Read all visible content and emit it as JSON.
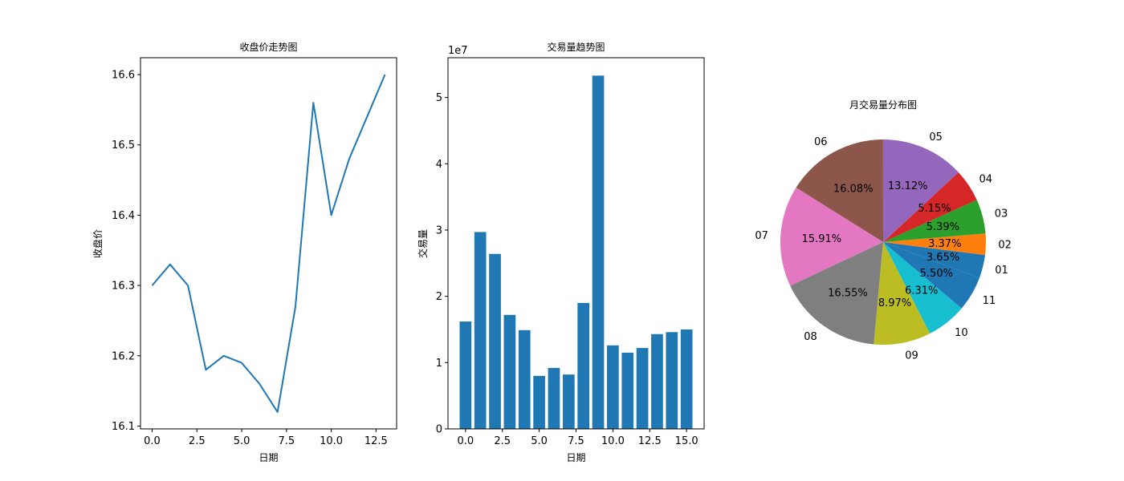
{
  "chart_data": [
    {
      "type": "line",
      "title": "收盘价走势图",
      "xlabel": "日期",
      "ylabel": "收盘价",
      "x": [
        0,
        1,
        2,
        3,
        4,
        5,
        6,
        7,
        8,
        9,
        10,
        11,
        12,
        13
      ],
      "values": [
        16.3,
        16.33,
        16.3,
        16.18,
        16.2,
        16.19,
        16.16,
        16.12,
        16.27,
        16.56,
        16.4,
        16.48,
        16.54,
        16.6
      ],
      "xticks": [
        0.0,
        2.5,
        5.0,
        7.5,
        10.0,
        12.5
      ],
      "xtick_labels": [
        "0.0",
        "2.5",
        "5.0",
        "7.5",
        "10.0",
        "12.5"
      ],
      "yticks": [
        16.1,
        16.2,
        16.3,
        16.4,
        16.5,
        16.6
      ],
      "ytick_labels": [
        "16.1",
        "16.2",
        "16.3",
        "16.4",
        "16.5",
        "16.6"
      ],
      "xlim": [
        -0.65,
        13.65
      ],
      "ylim": [
        16.096,
        16.624
      ],
      "color": "#1f77b4",
      "grid": false
    },
    {
      "type": "bar",
      "title": "交易量趋势图",
      "xlabel": "日期",
      "ylabel": "交易量",
      "offset_text": "1e7",
      "x": [
        0,
        1,
        2,
        3,
        4,
        5,
        6,
        7,
        8,
        9,
        10,
        11,
        12,
        13,
        14,
        15
      ],
      "values": [
        1.62,
        2.97,
        2.64,
        1.72,
        1.49,
        0.8,
        0.92,
        0.82,
        1.9,
        5.33,
        1.26,
        1.15,
        1.22,
        1.43,
        1.46,
        1.5
      ],
      "value_scale": 10000000,
      "xticks": [
        0.0,
        2.5,
        5.0,
        7.5,
        10.0,
        12.5,
        15.0
      ],
      "xtick_labels": [
        "0.0",
        "2.5",
        "5.0",
        "7.5",
        "10.0",
        "12.5",
        "15.0"
      ],
      "yticks": [
        0,
        1,
        2,
        3,
        4,
        5
      ],
      "ytick_labels": [
        "0",
        "1",
        "2",
        "3",
        "4",
        "5"
      ],
      "xlim": [
        -1.19,
        16.19
      ],
      "ylim": [
        0,
        5.6
      ],
      "color": "#1f77b4",
      "grid": false
    },
    {
      "type": "pie",
      "title": "月交易量分布图",
      "slices": [
        {
          "label": "01",
          "pct": 3.65,
          "pct_label": "3.65%",
          "color": "#1f77b4"
        },
        {
          "label": "02",
          "pct": 3.37,
          "pct_label": "3.37%",
          "color": "#ff7f0e"
        },
        {
          "label": "03",
          "pct": 5.39,
          "pct_label": "5.39%",
          "color": "#2ca02c"
        },
        {
          "label": "04",
          "pct": 5.15,
          "pct_label": "5.15%",
          "color": "#d62728"
        },
        {
          "label": "05",
          "pct": 13.12,
          "pct_label": "13.12%",
          "color": "#9467bd"
        },
        {
          "label": "06",
          "pct": 16.08,
          "pct_label": "16.08%",
          "color": "#8c564b"
        },
        {
          "label": "07",
          "pct": 15.91,
          "pct_label": "15.91%",
          "color": "#e377c2"
        },
        {
          "label": "08",
          "pct": 16.55,
          "pct_label": "16.55%",
          "color": "#7f7f7f"
        },
        {
          "label": "09",
          "pct": 8.97,
          "pct_label": "8.97%",
          "color": "#bcbd22"
        },
        {
          "label": "10",
          "pct": 6.31,
          "pct_label": "6.31%",
          "color": "#17becf"
        },
        {
          "label": "11",
          "pct": 5.5,
          "pct_label": "5.50%",
          "color": "#1f77b4"
        }
      ],
      "start_angle_deg": -20.4,
      "direction": "counterclockwise"
    }
  ]
}
